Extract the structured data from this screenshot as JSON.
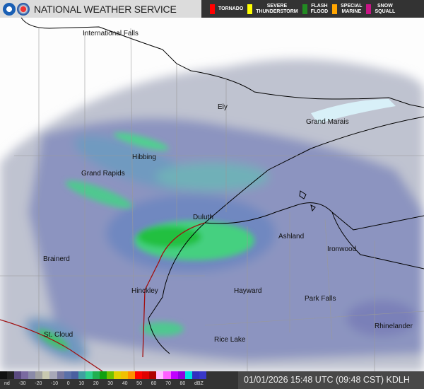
{
  "header": {
    "title": "NATIONAL WEATHER SERVICE",
    "logos": [
      "noaa-logo",
      "nws-logo"
    ],
    "warnings": [
      {
        "label": "TORNADO",
        "color": "#ff0000"
      },
      {
        "label": "SEVERE\nTHUNDERSTORM",
        "color": "#ffff00"
      },
      {
        "label": "FLASH\nFLOOD",
        "color": "#228b22"
      },
      {
        "label": "SPECIAL\nMARINE",
        "color": "#ffa500"
      },
      {
        "label": "SNOW\nSQUALL",
        "color": "#c71585"
      }
    ]
  },
  "map": {
    "radar": "KDLH",
    "cities": [
      {
        "name": "International Falls"
      },
      {
        "name": "Ely"
      },
      {
        "name": "Grand Marais"
      },
      {
        "name": "Hibbing"
      },
      {
        "name": "Grand Rapids"
      },
      {
        "name": "Duluth"
      },
      {
        "name": "Ashland"
      },
      {
        "name": "Ironwood"
      },
      {
        "name": "Brainerd"
      },
      {
        "name": "Hinckley"
      },
      {
        "name": "Hayward"
      },
      {
        "name": "Park Falls"
      },
      {
        "name": "Rhinelander"
      },
      {
        "name": "St. Cloud"
      },
      {
        "name": "Rice Lake"
      }
    ]
  },
  "legend": {
    "ticks": [
      "nd",
      "-30",
      "-20",
      "-10",
      "0",
      "10",
      "20",
      "30",
      "40",
      "50",
      "60",
      "70",
      "80",
      "dBZ"
    ],
    "colors": [
      "#111",
      "#222",
      "#5a4a80",
      "#7a6aa0",
      "#8a8aa8",
      "#a0a0a0",
      "#c8c8b0",
      "#a8a8b8",
      "#7878a0",
      "#5a70a8",
      "#4a60a0",
      "#40a0a0",
      "#30d090",
      "#20b050",
      "#10a010",
      "#70c000",
      "#e0d000",
      "#f0c000",
      "#ff9000",
      "#ff0000",
      "#e00000",
      "#b00000",
      "#ffc0ff",
      "#ff60ff",
      "#c000ff",
      "#9000e0",
      "#00e0e0",
      "#3030c0",
      "#3838c8"
    ]
  },
  "timestamp": "01/01/2026 15:48 UTC (09:48 CST)  KDLH"
}
